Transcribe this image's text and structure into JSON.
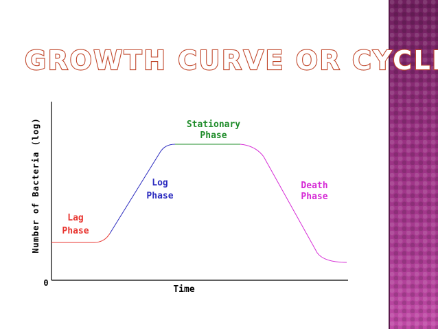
{
  "slide": {
    "title": "Growth Curve or Cycle",
    "colors": {
      "title_stroke": "#c0462a",
      "sidebar": "#8a2a74"
    }
  },
  "chart_data": {
    "type": "line",
    "xlabel": "Time",
    "ylabel": "Number of Bacteria (log)",
    "origin_label": "0",
    "phases": [
      {
        "name": "lag",
        "label_line1": "Lag",
        "label_line2": "Phase",
        "color": "#e8342f"
      },
      {
        "name": "log",
        "label_line1": "Log",
        "label_line2": "Phase",
        "color": "#2b2bbf"
      },
      {
        "name": "stationary",
        "label_line1": "Stationary",
        "label_line2": "Phase",
        "color": "#1f8c2a"
      },
      {
        "name": "death",
        "label_line1": "Death",
        "label_line2": "Phase",
        "color": "#d52ad5"
      }
    ]
  }
}
